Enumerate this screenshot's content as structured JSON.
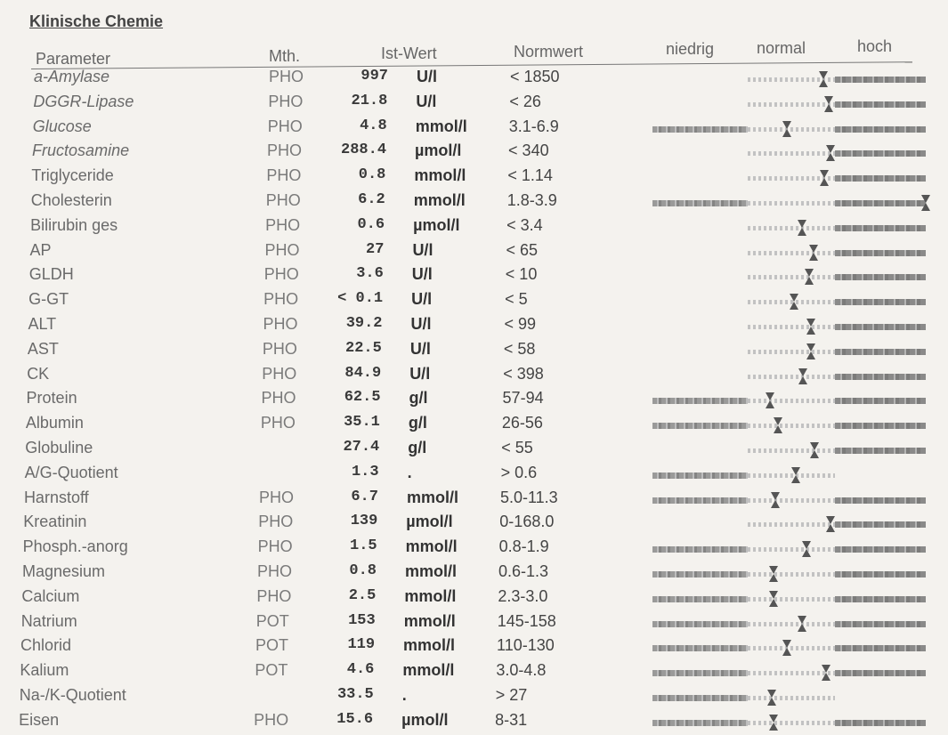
{
  "section_title": "Klinische Chemie",
  "headers": {
    "parameter": "Parameter",
    "method": "Mth.",
    "value": "Ist-Wert",
    "reference": "Normwert",
    "low": "niedrig",
    "normal": "normal",
    "high": "hoch"
  },
  "rows": [
    {
      "param": "a-Amylase",
      "method": "PHO",
      "value": "997",
      "unit": "U/l",
      "reference": "< 1850",
      "level": 0.87,
      "low_zone": false,
      "high_zone": true
    },
    {
      "param": "DGGR-Lipase",
      "method": "PHO",
      "value": "21.8",
      "unit": "U/l",
      "reference": "< 26",
      "level": 0.93,
      "low_zone": false,
      "high_zone": true
    },
    {
      "param": "Glucose",
      "method": "PHO",
      "value": "4.8",
      "unit": "mmol/l",
      "reference": "3.1-6.9",
      "level": 0.45,
      "low_zone": true,
      "high_zone": true
    },
    {
      "param": "Fructosamine",
      "method": "PHO",
      "value": "288.4",
      "unit": "µmol/l",
      "reference": "< 340",
      "level": 0.95,
      "low_zone": false,
      "high_zone": true
    },
    {
      "param": "Triglyceride",
      "method": "PHO",
      "value": "0.8",
      "unit": "mmol/l",
      "reference": "< 1.14",
      "level": 0.88,
      "low_zone": false,
      "high_zone": true
    },
    {
      "param": "Cholesterin",
      "method": "PHO",
      "value": "6.2",
      "unit": "mmol/l",
      "reference": "1.8-3.9",
      "level": 2.05,
      "low_zone": true,
      "high_zone": true
    },
    {
      "param": "Bilirubin ges",
      "method": "PHO",
      "value": "0.6",
      "unit": "µmol/l",
      "reference": "< 3.4",
      "level": 0.62,
      "low_zone": false,
      "high_zone": true
    },
    {
      "param": "AP",
      "method": "PHO",
      "value": "27",
      "unit": "U/l",
      "reference": "< 65",
      "level": 0.75,
      "low_zone": false,
      "high_zone": true
    },
    {
      "param": "GLDH",
      "method": "PHO",
      "value": "3.6",
      "unit": "U/l",
      "reference": "< 10",
      "level": 0.7,
      "low_zone": false,
      "high_zone": true
    },
    {
      "param": "G-GT",
      "method": "PHO",
      "value": "< 0.1",
      "unit": "U/l",
      "reference": "< 5",
      "level": 0.53,
      "low_zone": false,
      "high_zone": true
    },
    {
      "param": "ALT",
      "method": "PHO",
      "value": "39.2",
      "unit": "U/l",
      "reference": "< 99",
      "level": 0.72,
      "low_zone": false,
      "high_zone": true
    },
    {
      "param": "AST",
      "method": "PHO",
      "value": "22.5",
      "unit": "U/l",
      "reference": "< 58",
      "level": 0.72,
      "low_zone": false,
      "high_zone": true
    },
    {
      "param": "CK",
      "method": "PHO",
      "value": "84.9",
      "unit": "U/l",
      "reference": "< 398",
      "level": 0.63,
      "low_zone": false,
      "high_zone": true
    },
    {
      "param": "Protein",
      "method": "PHO",
      "value": "62.5",
      "unit": "g/l",
      "reference": "57-94",
      "level": 0.25,
      "low_zone": true,
      "high_zone": true
    },
    {
      "param": "Albumin",
      "method": "PHO",
      "value": "35.1",
      "unit": "g/l",
      "reference": "26-56",
      "level": 0.35,
      "low_zone": true,
      "high_zone": true
    },
    {
      "param": "Globuline",
      "method": "",
      "value": "27.4",
      "unit": "g/l",
      "reference": "< 55",
      "level": 0.77,
      "low_zone": false,
      "high_zone": true
    },
    {
      "param": "A/G-Quotient",
      "method": "",
      "value": "1.3",
      "unit": ".",
      "reference": "> 0.6",
      "level": 0.55,
      "low_zone": true,
      "high_zone": false
    },
    {
      "param": "Harnstoff",
      "method": "PHO",
      "value": "6.7",
      "unit": "mmol/l",
      "reference": "5.0-11.3",
      "level": 0.32,
      "low_zone": true,
      "high_zone": true
    },
    {
      "param": "Kreatinin",
      "method": "PHO",
      "value": "139",
      "unit": "µmol/l",
      "reference": "0-168.0",
      "level": 0.95,
      "low_zone": false,
      "high_zone": true
    },
    {
      "param": "Phosph.-anorg",
      "method": "PHO",
      "value": "1.5",
      "unit": "mmol/l",
      "reference": "0.8-1.9",
      "level": 0.67,
      "low_zone": true,
      "high_zone": true
    },
    {
      "param": "Magnesium",
      "method": "PHO",
      "value": "0.8",
      "unit": "mmol/l",
      "reference": "0.6-1.3",
      "level": 0.3,
      "low_zone": true,
      "high_zone": true
    },
    {
      "param": "Calcium",
      "method": "PHO",
      "value": "2.5",
      "unit": "mmol/l",
      "reference": "2.3-3.0",
      "level": 0.3,
      "low_zone": true,
      "high_zone": true
    },
    {
      "param": "Natrium",
      "method": "POT",
      "value": "153",
      "unit": "mmol/l",
      "reference": "145-158",
      "level": 0.62,
      "low_zone": true,
      "high_zone": true
    },
    {
      "param": "Chlorid",
      "method": "POT",
      "value": "119",
      "unit": "mmol/l",
      "reference": "110-130",
      "level": 0.45,
      "low_zone": true,
      "high_zone": true
    },
    {
      "param": "Kalium",
      "method": "POT",
      "value": "4.6",
      "unit": "mmol/l",
      "reference": "3.0-4.8",
      "level": 0.9,
      "low_zone": true,
      "high_zone": true
    },
    {
      "param": "Na-/K-Quotient",
      "method": "",
      "value": "33.5",
      "unit": ".",
      "reference": "> 27",
      "level": 0.28,
      "low_zone": true,
      "high_zone": false
    },
    {
      "param": "Eisen",
      "method": "PHO",
      "value": "15.6",
      "unit": "µmol/l",
      "reference": "8-31",
      "level": 0.3,
      "low_zone": true,
      "high_zone": true
    }
  ]
}
